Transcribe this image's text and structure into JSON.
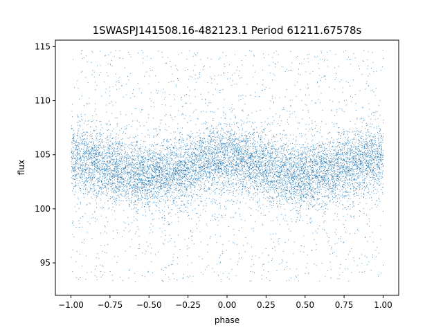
{
  "chart_data": {
    "type": "scatter",
    "title": "1SWASPJ141508.16-482123.1 Period 61211.67578s",
    "xlabel": "phase",
    "ylabel": "flux",
    "xlim": [
      -1.1,
      1.1
    ],
    "ylim": [
      92.0,
      115.6
    ],
    "x_ticks": [
      -1.0,
      -0.75,
      -0.5,
      -0.25,
      0.0,
      0.25,
      0.5,
      0.75,
      1.0
    ],
    "x_tick_labels": [
      "−1.00",
      "−0.75",
      "−0.50",
      "−0.25",
      "0.00",
      "0.25",
      "0.50",
      "0.75",
      "1.00"
    ],
    "y_ticks": [
      95,
      100,
      105,
      110,
      115
    ],
    "y_tick_labels": [
      "95",
      "100",
      "105",
      "110",
      "115"
    ],
    "grid": false,
    "legend": "none",
    "series_color": "#1f77b4",
    "series": [
      {
        "x": [
          -1.0,
          -0.9,
          -0.8,
          -0.7,
          -0.6,
          -0.5,
          -0.4,
          -0.3,
          -0.2,
          -0.1,
          0.0,
          0.1,
          0.2,
          0.3,
          0.4,
          0.5,
          0.6,
          0.7,
          0.8,
          0.9,
          1.0
        ],
        "y": [
          104.8,
          104.5,
          104.0,
          103.6,
          103.2,
          103.1,
          103.2,
          103.6,
          104.1,
          104.6,
          104.8,
          104.6,
          104.1,
          103.6,
          103.2,
          103.1,
          103.2,
          103.6,
          104.1,
          104.6,
          104.8
        ],
        "core_width": 4.0,
        "outlier_range": [
          93.2,
          114.7
        ]
      }
    ]
  }
}
